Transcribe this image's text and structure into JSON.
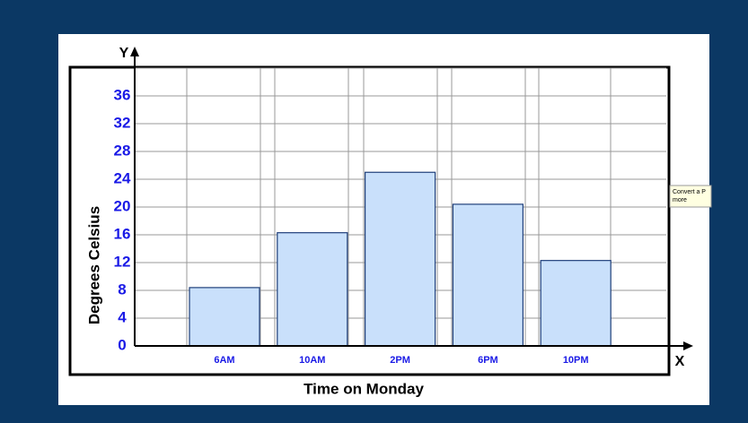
{
  "chart_data": {
    "type": "bar",
    "y_label": "Degrees Celsius",
    "x_label": "Time on Monday",
    "y_axis_letter": "Y",
    "x_axis_letter": "X",
    "categories": [
      "6AM",
      "10AM",
      "2PM",
      "6PM",
      "10PM"
    ],
    "values": [
      8.4,
      16.3,
      25,
      20.4,
      12.3
    ],
    "color": "#c9e0fb",
    "ylim": [
      0,
      40
    ],
    "yticks": [
      0,
      4,
      8,
      12,
      16,
      20,
      24,
      28,
      32,
      36
    ],
    "grid": true
  },
  "tooltip": [
    "Convert a P",
    "more"
  ]
}
